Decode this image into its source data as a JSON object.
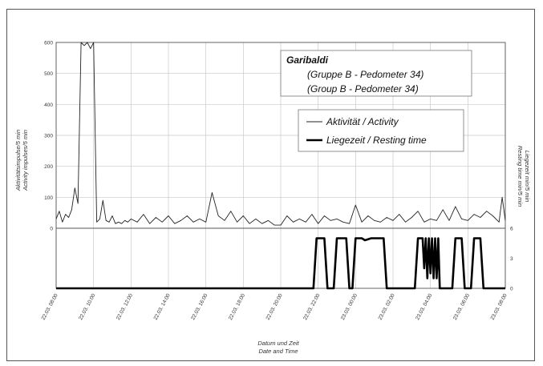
{
  "chart_data": {
    "type": "line",
    "title": "Garibaldi",
    "subtitle_de": "(Gruppe B  -  Pedometer 34)",
    "subtitle_en": "(Group B  -  Pedometer 34)",
    "xlabel_de": "Datum und Zeit",
    "xlabel_en": "Date and Time",
    "ylabel_left_de": "Aktivitätsimpulse/5 min",
    "ylabel_left_en": "Activity impulses/5 min",
    "ylabel_right_de": "Liegezeit min/5 min",
    "ylabel_right_en": "Resting time min/5 min",
    "x_ticks": [
      "22.03. 08:00",
      "22.03. 10:00",
      "22.03. 12:00",
      "22.03. 14:00",
      "22.03. 16:00",
      "22.03. 18:00",
      "22.03. 20:00",
      "22.03. 22:00",
      "23.03. 00:00",
      "23.03. 02:00",
      "23.03. 04:00",
      "23.03. 06:00",
      "23.03. 08:00"
    ],
    "x_range": [
      "22.03. 08:00",
      "23.03. 08:00"
    ],
    "y_left_ticks": [
      "600",
      "500",
      "400",
      "300",
      "200",
      "100",
      "0"
    ],
    "ylim_left": [
      0,
      600
    ],
    "y_right_ticks": [
      "6",
      "3",
      "0"
    ],
    "ylim_right": [
      0,
      6
    ],
    "grid": true,
    "legend_position": "top-right",
    "series": [
      {
        "name": "Aktivität / Activity",
        "axis": "left",
        "color": "#222222",
        "stroke": "thin",
        "x": [
          "22.03. 08:00",
          "22.03. 08:10",
          "22.03. 08:20",
          "22.03. 08:30",
          "22.03. 08:40",
          "22.03. 08:50",
          "22.03. 09:00",
          "22.03. 09:10",
          "22.03. 09:20",
          "22.03. 09:30",
          "22.03. 09:40",
          "22.03. 09:50",
          "22.03. 10:00",
          "22.03. 10:10",
          "22.03. 10:20",
          "22.03. 10:30",
          "22.03. 10:40",
          "22.03. 10:50",
          "22.03. 11:00",
          "22.03. 11:10",
          "22.03. 11:20",
          "22.03. 11:30",
          "22.03. 11:40",
          "22.03. 11:50",
          "22.03. 12:00",
          "22.03. 12:20",
          "22.03. 12:40",
          "22.03. 13:00",
          "22.03. 13:20",
          "22.03. 13:40",
          "22.03. 14:00",
          "22.03. 14:20",
          "22.03. 14:40",
          "22.03. 15:00",
          "22.03. 15:20",
          "22.03. 15:40",
          "22.03. 16:00",
          "22.03. 16:20",
          "22.03. 16:40",
          "22.03. 17:00",
          "22.03. 17:20",
          "22.03. 17:40",
          "22.03. 18:00",
          "22.03. 18:20",
          "22.03. 18:40",
          "22.03. 19:00",
          "22.03. 19:20",
          "22.03. 19:40",
          "22.03. 20:00",
          "22.03. 20:20",
          "22.03. 20:40",
          "22.03. 21:00",
          "22.03. 21:20",
          "22.03. 21:40",
          "22.03. 22:00",
          "22.03. 22:20",
          "22.03. 22:40",
          "22.03. 23:00",
          "22.03. 23:20",
          "22.03. 23:40",
          "23.03. 00:00",
          "23.03. 00:20",
          "23.03. 00:40",
          "23.03. 01:00",
          "23.03. 01:20",
          "23.03. 01:40",
          "23.03. 02:00",
          "23.03. 02:20",
          "23.03. 02:40",
          "23.03. 03:00",
          "23.03. 03:20",
          "23.03. 03:40",
          "23.03. 04:00",
          "23.03. 04:20",
          "23.03. 04:40",
          "23.03. 05:00",
          "23.03. 05:20",
          "23.03. 05:40",
          "23.03. 06:00",
          "23.03. 06:20",
          "23.03. 06:40",
          "23.03. 07:00",
          "23.03. 07:20",
          "23.03. 07:40",
          "23.03. 07:50",
          "23.03. 08:00"
        ],
        "y": [
          30,
          55,
          20,
          45,
          35,
          60,
          130,
          80,
          600,
          590,
          600,
          580,
          600,
          20,
          30,
          90,
          25,
          20,
          40,
          15,
          20,
          15,
          25,
          20,
          30,
          20,
          45,
          15,
          35,
          20,
          40,
          15,
          25,
          40,
          20,
          30,
          20,
          115,
          40,
          25,
          55,
          20,
          40,
          15,
          30,
          15,
          25,
          10,
          10,
          40,
          20,
          30,
          20,
          45,
          15,
          40,
          25,
          30,
          20,
          15,
          75,
          20,
          40,
          25,
          20,
          35,
          25,
          45,
          20,
          35,
          55,
          20,
          30,
          25,
          60,
          25,
          70,
          30,
          25,
          45,
          35,
          55,
          40,
          20,
          100,
          25
        ]
      },
      {
        "name": "Liegezeit / Resting time",
        "axis": "right",
        "color": "#000000",
        "stroke": "thick",
        "x": [
          "22.03. 08:00",
          "22.03. 21:45",
          "22.03. 21:55",
          "22.03. 22:20",
          "22.03. 22:30",
          "22.03. 22:50",
          "22.03. 23:00",
          "22.03. 23:30",
          "22.03. 23:40",
          "22.03. 23:50",
          "23.03. 00:00",
          "23.03. 00:20",
          "23.03. 00:30",
          "23.03. 00:50",
          "23.03. 01:00",
          "23.03. 01:30",
          "23.03. 01:40",
          "23.03. 03:10",
          "23.03. 03:20",
          "23.03. 03:35",
          "23.03. 03:40",
          "23.03. 03:45",
          "23.03. 03:50",
          "23.03. 03:55",
          "23.03. 04:00",
          "23.03. 04:05",
          "23.03. 04:10",
          "23.03. 04:15",
          "23.03. 04:20",
          "23.03. 04:25",
          "23.03. 04:30",
          "23.03. 04:40",
          "23.03. 05:10",
          "23.03. 05:20",
          "23.03. 05:40",
          "23.03. 05:50",
          "23.03. 06:10",
          "23.03. 06:20",
          "23.03. 06:40",
          "23.03. 06:50",
          "23.03. 08:00"
        ],
        "y": [
          0,
          0,
          5,
          5,
          0,
          0,
          5,
          5,
          0,
          0,
          5,
          5,
          4.8,
          5,
          5,
          5,
          0,
          0,
          5,
          5,
          2,
          5,
          1,
          5,
          1.5,
          5,
          1,
          5,
          1,
          5,
          0,
          0,
          0,
          5,
          5,
          0,
          0,
          5,
          5,
          0,
          0
        ]
      }
    ]
  }
}
